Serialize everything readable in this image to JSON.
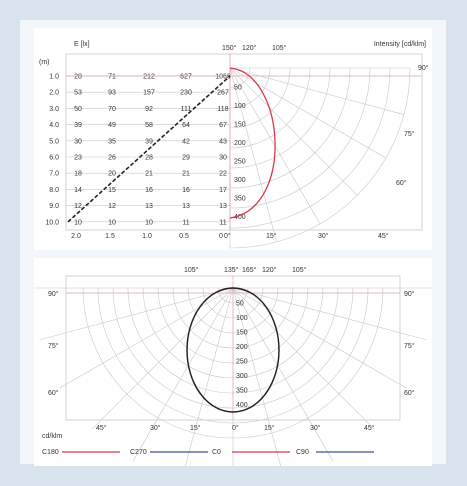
{
  "top": {
    "y_title": "E [lx]",
    "intensity_title": "Intensity [cd/klm]",
    "h_label": "(m)",
    "heights": [
      "1.0",
      "2.0",
      "3.0",
      "4.0",
      "5.0",
      "6.0",
      "7.0",
      "8.0",
      "9.0",
      "10.0"
    ],
    "x_ticks": [
      "2.0",
      "1.5",
      "1.0",
      "0.5",
      "0"
    ],
    "illuminance": [
      [
        "28",
        "71",
        "212",
        "627",
        "1066"
      ],
      [
        "53",
        "93",
        "157",
        "230",
        "267"
      ],
      [
        "50",
        "70",
        "92",
        "111",
        "118"
      ],
      [
        "39",
        "49",
        "58",
        "64",
        "67"
      ],
      [
        "30",
        "35",
        "39",
        "42",
        "43"
      ],
      [
        "23",
        "26",
        "28",
        "29",
        "30"
      ],
      [
        "18",
        "20",
        "21",
        "21",
        "22"
      ],
      [
        "14",
        "15",
        "16",
        "16",
        "17"
      ],
      [
        "12",
        "12",
        "13",
        "13",
        "13"
      ],
      [
        "10",
        "10",
        "10",
        "11",
        "11"
      ]
    ],
    "intensity_ticks": [
      "50",
      "100",
      "150",
      "200",
      "250",
      "300",
      "350",
      "400"
    ],
    "top_angles": [
      "150°",
      "120°",
      "105°"
    ],
    "right_angles": [
      "90°",
      "75°",
      "60°"
    ],
    "bottom_angles": [
      "0°",
      "15°",
      "30°",
      "45°"
    ]
  },
  "bottom": {
    "top_angles": [
      "105°",
      "135°",
      "165°",
      "120°",
      "105°"
    ],
    "side_angles": [
      "90°",
      "75°",
      "60°"
    ],
    "radial_ticks": [
      "50",
      "100",
      "150",
      "200",
      "250",
      "300",
      "350",
      "400"
    ],
    "bottom_angles": [
      "45°",
      "30°",
      "15°",
      "0°",
      "15°",
      "30°",
      "45°"
    ],
    "unit": "cd/klm"
  },
  "legend": [
    {
      "label": "C180",
      "color": "#d83a4a"
    },
    {
      "label": "C270",
      "color": "#3b4fa0"
    },
    {
      "label": "C0",
      "color": "#d83a4a"
    },
    {
      "label": "C90",
      "color": "#3b4fa0"
    }
  ]
}
